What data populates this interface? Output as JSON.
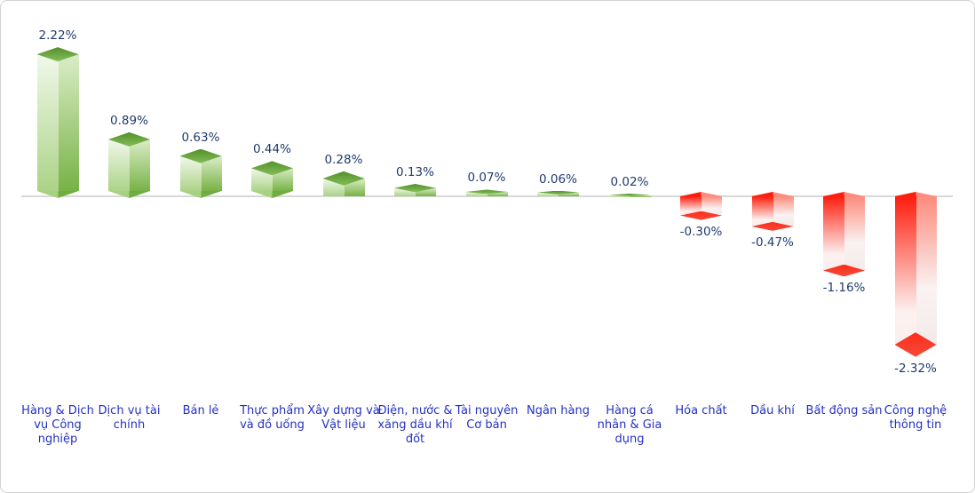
{
  "chart_data": {
    "type": "bar",
    "title": "",
    "xlabel": "",
    "ylabel": "",
    "unit": "%",
    "grid": false,
    "legend": "none",
    "baseline_value": 0,
    "ylim": [
      -2.5,
      2.5
    ],
    "categories": [
      "Hàng & Dịch vụ Công nghiệp",
      "Dịch vụ tài chính",
      "Bán lẻ",
      "Thực phẩm và đồ uống",
      "Xây dựng và Vật liệu",
      "Điện, nước & xăng dầu khí đốt",
      "Tài nguyên Cơ bản",
      "Ngân hàng",
      "Hàng cá nhân & Gia dụng",
      "Hóa chất",
      "Dầu khí",
      "Bất động sản",
      "Công nghệ thông tin"
    ],
    "category_lines": [
      [
        "Hàng & Dịch",
        "vụ Công",
        "nghiệp"
      ],
      [
        "Dịch vụ tài",
        "chính"
      ],
      [
        "Bán lẻ"
      ],
      [
        "Thực phẩm",
        "và đồ uống"
      ],
      [
        "Xây dựng và",
        "Vật liệu"
      ],
      [
        "Điện, nước &",
        "xăng dầu khí",
        "đốt"
      ],
      [
        "Tài nguyên",
        "Cơ bản"
      ],
      [
        "Ngân hàng"
      ],
      [
        "Hàng cá",
        "nhân & Gia",
        "dụng"
      ],
      [
        "Hóa chất"
      ],
      [
        "Dầu khí"
      ],
      [
        "Bất động sản"
      ],
      [
        "Công nghệ",
        "thông tin"
      ]
    ],
    "values": [
      2.22,
      0.89,
      0.63,
      0.44,
      0.28,
      0.13,
      0.07,
      0.06,
      0.02,
      -0.3,
      -0.47,
      -1.16,
      -2.32
    ],
    "value_labels": [
      "2.22%",
      "0.89%",
      "0.63%",
      "0.44%",
      "0.28%",
      "0.13%",
      "0.07%",
      "0.06%",
      "0.02%",
      "-0.30%",
      "-0.47%",
      "-1.16%",
      "-2.32%"
    ],
    "colors": {
      "positive_bar": "#6cab3c",
      "negative_bar": "#ff2012",
      "value_label": "#203a6e",
      "category_label": "#2530c3",
      "axis_line": "#d8d8d8"
    }
  }
}
